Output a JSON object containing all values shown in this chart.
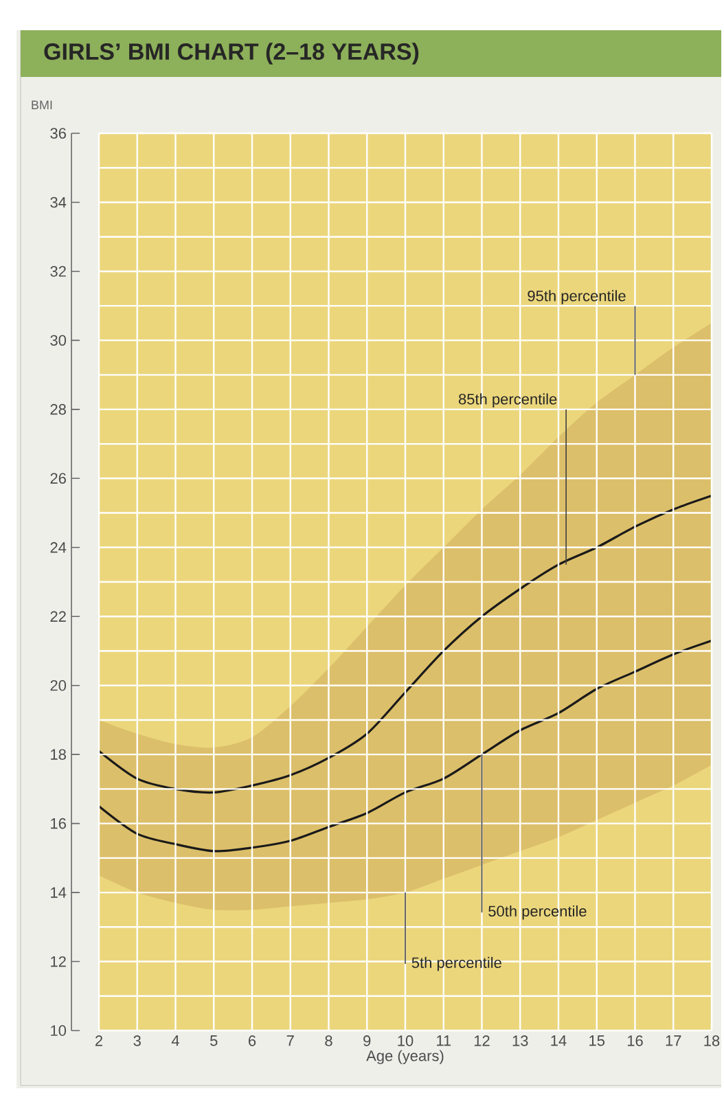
{
  "chart_data": {
    "type": "line",
    "title": "GIRLS’ BMI CHART (2–18 YEARS)",
    "xlabel": "Age (years)",
    "ylabel": "BMI",
    "x": [
      2,
      3,
      4,
      5,
      6,
      7,
      8,
      9,
      10,
      11,
      12,
      13,
      14,
      15,
      16,
      17,
      18
    ],
    "series": [
      {
        "color": "#1a1a1a",
        "values": [
          18.1,
          17.3,
          17.0,
          16.9,
          17.1,
          17.4,
          17.9,
          18.6,
          19.8,
          21.0,
          22.0,
          22.8,
          23.5,
          24.0,
          24.6,
          25.1,
          25.5
        ]
      },
      {
        "color": "#1a1a1a",
        "values": [
          16.5,
          15.7,
          15.4,
          15.2,
          15.3,
          15.5,
          15.9,
          16.3,
          16.9,
          17.3,
          18.0,
          18.7,
          19.2,
          19.9,
          20.4,
          20.9,
          21.3
        ],
        "lower": [
          14.5,
          14.0,
          13.7,
          13.5,
          13.5,
          13.6,
          13.7,
          13.8,
          14.0,
          14.4,
          14.8,
          15.2,
          15.6,
          16.1,
          16.6,
          17.1,
          17.7
        ],
        "upper": [
          19.0,
          18.6,
          18.3,
          18.2,
          18.5,
          19.4,
          20.5,
          21.7,
          22.9,
          24.0,
          25.1,
          26.1,
          27.2,
          28.2,
          29.0,
          29.8,
          30.5
        ]
      }
    ],
    "annotations": [
      {
        "text": "95th percentile",
        "x": 16,
        "y": 29.0
      },
      {
        "text": "85th percentile",
        "x": 14.2,
        "y": 23.5
      },
      {
        "text": "50th percentile",
        "x": 12,
        "y": 18.0
      },
      {
        "text": "5th percentile",
        "x": 10,
        "y": 14.0
      }
    ],
    "xlim": [
      2,
      18
    ],
    "ylim": [
      10,
      36
    ],
    "xticks": [
      2,
      3,
      4,
      5,
      6,
      7,
      8,
      9,
      10,
      11,
      12,
      13,
      14,
      15,
      16,
      17,
      18
    ],
    "yticks": [
      10,
      12,
      14,
      16,
      18,
      20,
      22,
      24,
      26,
      28,
      30,
      32,
      34,
      36
    ],
    "grid": true,
    "marker": "none",
    "line_style": "solid"
  }
}
